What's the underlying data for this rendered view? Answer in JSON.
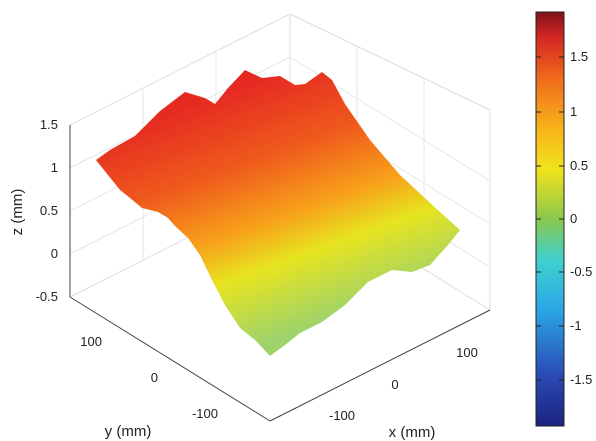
{
  "chart_data": {
    "type": "surface",
    "title": "",
    "xlabel": "x (mm)",
    "ylabel": "y (mm)",
    "zlabel": "z (mm)",
    "x_ticks": [
      "-100",
      "0",
      "100"
    ],
    "y_ticks": [
      "-100",
      "0",
      "100"
    ],
    "z_ticks": [
      "-0.5",
      "0",
      "0.5",
      "1",
      "1.5"
    ],
    "zlim": [
      -0.5,
      1.5
    ],
    "colorbar": {
      "ticks": [
        "-1.5",
        "-1",
        "-0.5",
        "0",
        "0.5",
        "1",
        "1.5"
      ],
      "range": [
        -1.9,
        1.9
      ],
      "colormap": "jet"
    },
    "grid": true,
    "surface": {
      "x_range": [
        -150,
        150
      ],
      "y_range": [
        -150,
        150
      ],
      "description_values": {
        "corner_high_y": 1.2,
        "corner_low_y": 0.3,
        "max_z": 1.4,
        "min_z": 0.0
      }
    }
  }
}
